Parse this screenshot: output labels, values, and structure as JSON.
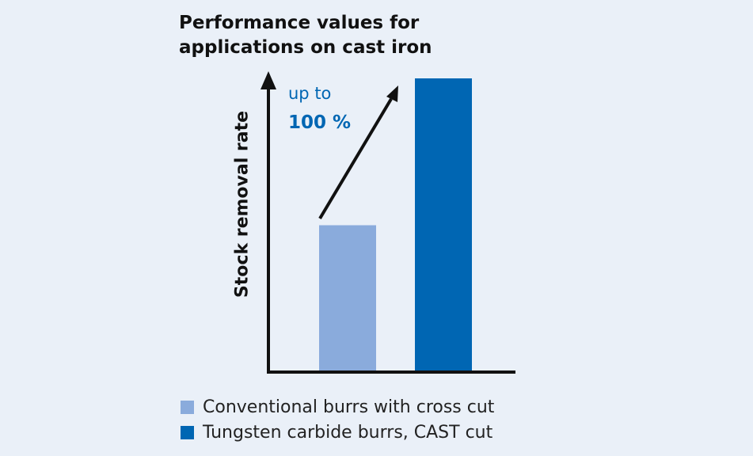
{
  "chart_data": {
    "type": "bar",
    "title": [
      "Performance values for",
      "applications on cast iron"
    ],
    "xlabel": "",
    "ylabel": "Stock removal rate",
    "categories": [
      "Conventional burrs with cross cut",
      "Tungsten carbide burrs, CAST cut"
    ],
    "values": [
      50,
      100
    ],
    "ylim": [
      0,
      100
    ],
    "colors": [
      "#8aabdc",
      "#0066b3"
    ],
    "grid": false,
    "legend_position": "bottom-left",
    "annotation": {
      "line1": "up to",
      "line2": "100 %",
      "color": "#0066b3"
    }
  }
}
